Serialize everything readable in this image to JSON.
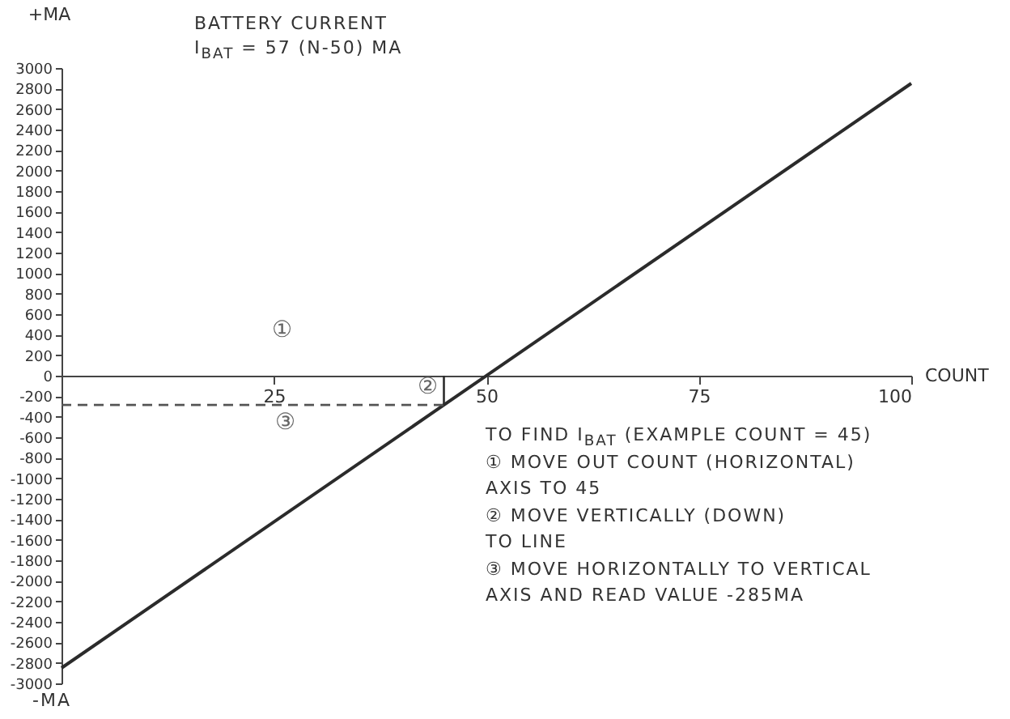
{
  "chart_data": {
    "type": "line",
    "title": "BATTERY CURRENT",
    "subtitle": "I$_{BAT}$ = 57 (N-50) MA",
    "xlabel": "COUNT",
    "ylabel": "+MA",
    "xlim": [
      0,
      100
    ],
    "xticks": [
      25,
      50,
      75,
      100
    ],
    "ylim": [
      -3000,
      3000
    ],
    "yticks": [
      -3000,
      -2800,
      -2600,
      -2400,
      -2200,
      -2000,
      -1800,
      -1600,
      -1400,
      -1200,
      -1000,
      -800,
      -600,
      -400,
      -200,
      0,
      200,
      400,
      600,
      800,
      1000,
      1200,
      1400,
      1600,
      1800,
      2000,
      2200,
      2400,
      2600,
      2800,
      3000
    ],
    "marker": "none",
    "series": [
      {
        "color": "#2b2b2b",
        "x": [
          0,
          100
        ],
        "values": [
          -2850,
          2850
        ],
        "line_style": "solid"
      },
      {
        "color": "#555555",
        "x": [
          0,
          45
        ],
        "values": [
          -285,
          -285
        ],
        "line_style": "dashed"
      },
      {
        "color": "#2b2b2b",
        "x": [
          45,
          45
        ],
        "values": [
          0,
          -285
        ],
        "line_style": "solid"
      }
    ],
    "annotations": [
      "-MA",
      "TO FIND I$_{BAT}$ (EXAMPLE COUNT = 45)",
      "① MOVE OUT COUNT (HORIZONTAL)",
      "AXIS TO 45",
      "② MOVE VERTICALLY (DOWN)",
      "TO LINE",
      "③ MOVE HORIZONTALLY TO VERTICAL",
      "AXIS AND READ VALUE -285MA",
      "①",
      "②",
      "③"
    ]
  }
}
